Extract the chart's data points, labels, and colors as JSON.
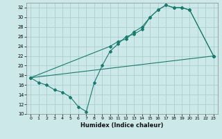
{
  "xlabel": "Humidex (Indice chaleur)",
  "xlim": [
    -0.5,
    23.5
  ],
  "ylim": [
    10,
    33
  ],
  "yticks": [
    10,
    12,
    14,
    16,
    18,
    20,
    22,
    24,
    26,
    28,
    30,
    32
  ],
  "xticks": [
    0,
    1,
    2,
    3,
    4,
    5,
    6,
    7,
    8,
    9,
    10,
    11,
    12,
    13,
    14,
    15,
    16,
    17,
    18,
    19,
    20,
    21,
    22,
    23
  ],
  "bg_color": "#cce8e8",
  "grid_color": "#aacfcf",
  "line_color": "#1a7a6e",
  "line1_x": [
    0,
    1,
    2,
    3,
    4,
    5,
    6,
    7,
    8,
    9,
    10,
    11,
    12,
    13,
    14,
    15,
    16,
    17,
    18,
    19,
    20,
    23
  ],
  "line1_y": [
    17.5,
    16.5,
    16.0,
    15.0,
    14.5,
    13.5,
    11.5,
    10.5,
    16.5,
    20.0,
    23.0,
    24.5,
    26.0,
    26.5,
    27.5,
    30.0,
    31.5,
    32.5,
    32.0,
    32.0,
    31.5,
    22.0
  ],
  "line2_x": [
    0,
    10,
    11,
    12,
    13,
    14,
    15,
    16,
    17,
    18,
    19,
    20,
    23
  ],
  "line2_y": [
    17.5,
    24.0,
    25.0,
    25.5,
    27.0,
    28.0,
    30.0,
    31.5,
    32.5,
    32.0,
    32.0,
    31.5,
    22.0
  ],
  "line3_x": [
    0,
    23
  ],
  "line3_y": [
    17.5,
    22.0
  ]
}
